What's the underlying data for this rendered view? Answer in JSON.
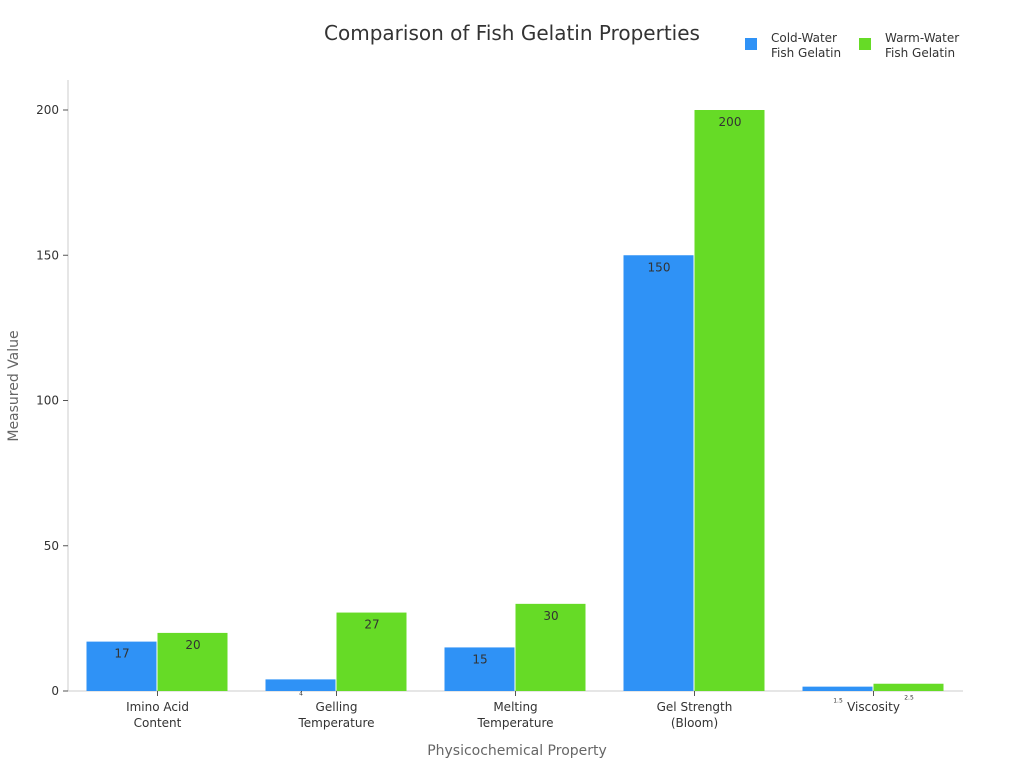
{
  "chart_data": {
    "type": "bar",
    "title": "Comparison of Fish Gelatin Properties",
    "xlabel": "Physicochemical Property",
    "ylabel": "Measured Value",
    "categories": [
      [
        "Imino Acid",
        "Content"
      ],
      [
        "Gelling",
        "Temperature"
      ],
      [
        "Melting",
        "Temperature"
      ],
      [
        "Gel Strength",
        "(Bloom)"
      ],
      [
        "Viscosity"
      ]
    ],
    "series": [
      {
        "name": [
          "Cold-Water",
          "Fish Gelatin"
        ],
        "color": "#2f92f6",
        "values": [
          17,
          4,
          15,
          150,
          1.5
        ]
      },
      {
        "name": [
          "Warm-Water",
          "Fish Gelatin"
        ],
        "color": "#66db26",
        "values": [
          20,
          27,
          30,
          200,
          2.5
        ]
      }
    ],
    "ylim": [
      0,
      210
    ],
    "yticks": [
      0,
      50,
      100,
      150,
      200
    ],
    "grid": false,
    "legend": "top-right"
  }
}
